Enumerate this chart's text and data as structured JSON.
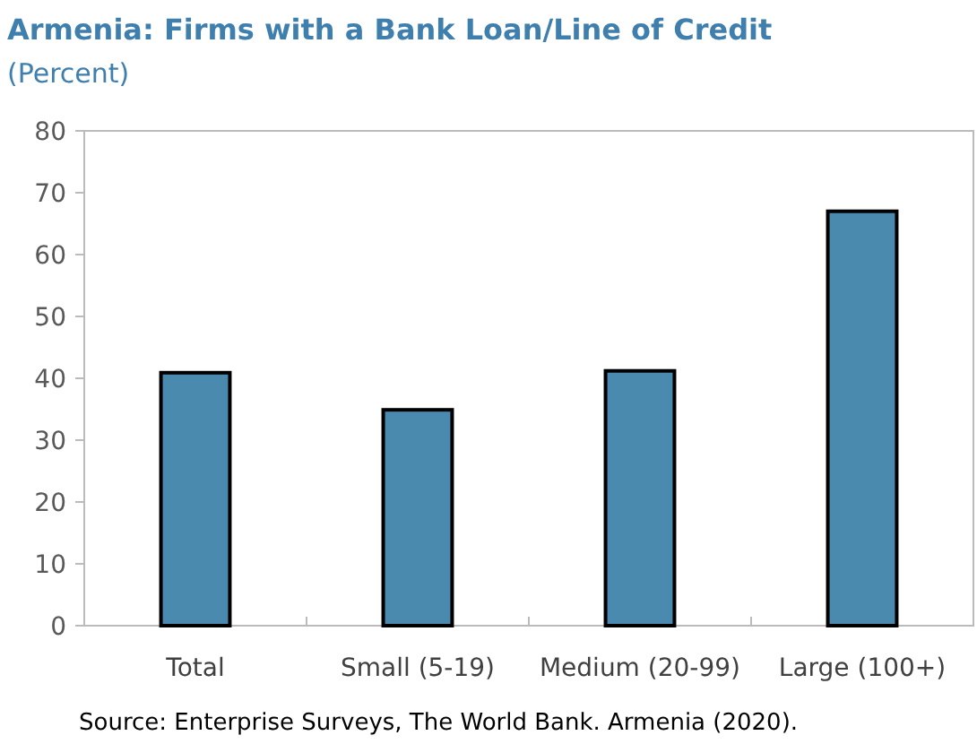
{
  "chart_data": {
    "type": "bar",
    "title": "Armenia: Firms with a Bank Loan/Line of Credit",
    "subtitle": "(Percent)",
    "categories": [
      "Total",
      "Small (5-19)",
      "Medium (20-99)",
      "Large (100+)"
    ],
    "values": [
      40.9,
      34.9,
      41.2,
      67.0
    ],
    "color": "#4a8aae",
    "ylim": [
      0,
      80
    ],
    "yticks": [
      0,
      10,
      20,
      30,
      40,
      50,
      60,
      70,
      80
    ],
    "grid": false,
    "annotations": [
      "Source: Enterprise Surveys, The World Bank. Armenia (2020)."
    ]
  }
}
